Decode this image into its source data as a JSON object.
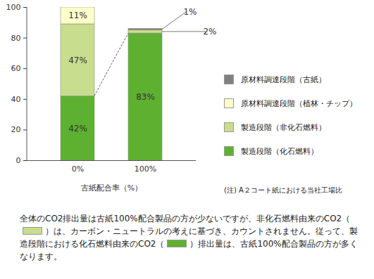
{
  "chart_data": {
    "type": "bar",
    "stacked": true,
    "data_labels": true,
    "legend": "right",
    "categories": [
      "0%",
      "100%"
    ],
    "xlabel": "古紙配合率（%）",
    "ylim": [
      0,
      100
    ],
    "yticks": [
      0,
      20,
      40,
      60,
      80,
      100
    ],
    "series": [
      {
        "name": "製造段階（化石燃料）",
        "color": "#5eb130",
        "values": [
          42,
          83
        ],
        "value_labels": [
          "42%",
          "83%"
        ]
      },
      {
        "name": "製造段階（非化石燃料）",
        "color": "#c9dd8e",
        "values": [
          47,
          2
        ],
        "value_labels": [
          "47%",
          "2%"
        ]
      },
      {
        "name": "原材料調達段階（植林・チップ）",
        "color": "#ffffcc",
        "values": [
          11,
          0
        ],
        "value_labels": [
          "11%",
          null
        ]
      },
      {
        "name": "原材料調達段階（古紙）",
        "color": "#808080",
        "values": [
          0,
          1
        ],
        "value_labels": [
          null,
          "1%"
        ]
      }
    ],
    "note": "(注) A２コート紙における当社工場比",
    "caption": {
      "parts": [
        "全体のCO2排出量は古紙100%配合製品の方が少ないですが、非化石燃料由来のCO2（",
        "）は、カーボン・ニュートラルの考えに基づき、カウントされません。従って、製造段階における化石燃料由来のCO2（",
        "）排出量は、古紙100%配合製品の方が多くなります。"
      ],
      "swatch_colors": [
        "#c9dd8e",
        "#5eb130"
      ]
    }
  }
}
